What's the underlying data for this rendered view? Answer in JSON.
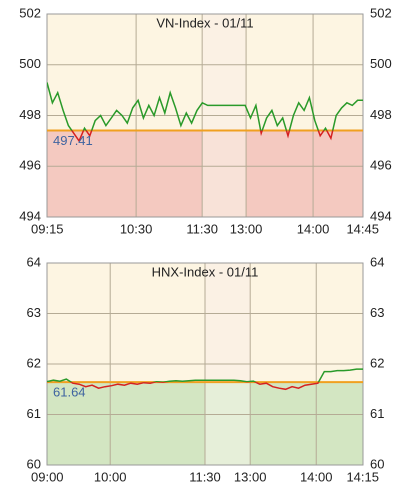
{
  "chart_data": [
    {
      "type": "line",
      "title": "VN-Index - 01/11",
      "xtick_labels": [
        "09:15",
        "10:30",
        "11:30",
        "13:00",
        "14:00",
        "14:45"
      ],
      "values": [
        499.3,
        498.5,
        498.9,
        498.2,
        497.6,
        497.3,
        497.0,
        497.5,
        497.2,
        497.8,
        498.0,
        497.6,
        497.9,
        498.2,
        498.0,
        497.7,
        498.3,
        498.6,
        497.9,
        498.4,
        498.0,
        498.7,
        498.1,
        498.9,
        498.3,
        497.6,
        498.1,
        497.7,
        498.2,
        498.5,
        498.4,
        498.4,
        498.4,
        498.4,
        498.4,
        498.4,
        498.4,
        498.4,
        497.9,
        498.4,
        497.3,
        497.9,
        498.2,
        497.6,
        497.9,
        497.2,
        498.0,
        498.5,
        498.2,
        498.7,
        497.8,
        497.2,
        497.5,
        497.1,
        498.0,
        498.3,
        498.5,
        498.4,
        498.6,
        498.6
      ],
      "reference": 497.41,
      "reference_color": "#f0a020",
      "color_up": "#2a9a2a",
      "color_down": "#d62020",
      "fill_color": "#f4c9c0",
      "fill_color_break": "#f8e2d8",
      "ylim": [
        494,
        502
      ],
      "yticks": [
        494,
        496,
        498,
        500,
        502
      ],
      "grid": true
    },
    {
      "type": "line",
      "title": "HNX-Index - 01/11",
      "xtick_labels": [
        "09:00",
        "10:00",
        "11:30",
        "13:00",
        "14:00",
        "14:15"
      ],
      "values": [
        61.65,
        61.68,
        61.66,
        61.7,
        61.62,
        61.6,
        61.55,
        61.58,
        61.52,
        61.55,
        61.57,
        61.6,
        61.58,
        61.62,
        61.6,
        61.63,
        61.62,
        61.65,
        61.64,
        61.66,
        61.67,
        61.66,
        61.67,
        61.68,
        61.68,
        61.68,
        61.68,
        61.68,
        61.68,
        61.68,
        61.67,
        61.65,
        61.66,
        61.6,
        61.62,
        61.55,
        61.52,
        61.5,
        61.55,
        61.52,
        61.58,
        61.6,
        61.62,
        61.85,
        61.85,
        61.87,
        61.87,
        61.88,
        61.9,
        61.9
      ],
      "reference": 61.64,
      "reference_color": "#f0a020",
      "color_up": "#2a9a2a",
      "color_down": "#d62020",
      "fill_color": "#d3e6c2",
      "fill_color_break": "#e6efd9",
      "ylim": [
        60,
        64
      ],
      "yticks": [
        60,
        61,
        62,
        63,
        64
      ],
      "grid": true
    }
  ]
}
